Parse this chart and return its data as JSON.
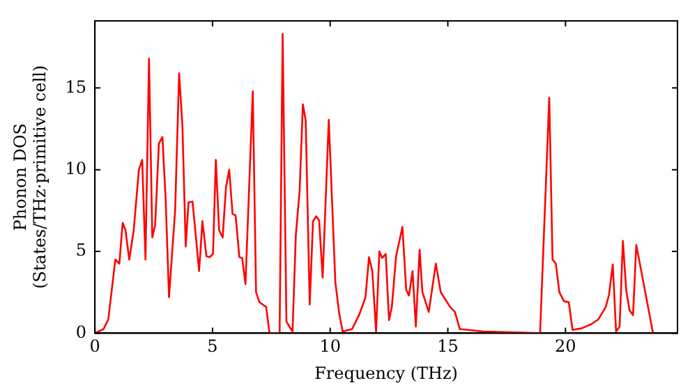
{
  "chart_data": {
    "type": "line",
    "xlabel": "Frequency (THz)",
    "ylabel": "Phonon DOS\n(States/THz·primitive cell)",
    "xlim": [
      0,
      24.76
    ],
    "ylim": [
      0,
      19.1
    ],
    "xticks": [
      0,
      5,
      10,
      15,
      20
    ],
    "yticks": [
      0,
      5,
      10,
      15
    ],
    "grid": false,
    "legend": false,
    "marker": "none",
    "line_style": "solid",
    "series": [
      {
        "color": "#ff0000",
        "x": [
          0,
          0.37,
          0.57,
          0.87,
          1.04,
          1.18,
          1.3,
          1.46,
          1.65,
          1.87,
          2.01,
          2.15,
          2.3,
          2.44,
          2.56,
          2.72,
          2.87,
          3.01,
          3.15,
          3.41,
          3.58,
          3.72,
          3.86,
          3.98,
          4.15,
          4.43,
          4.57,
          4.74,
          4.88,
          5.02,
          5.14,
          5.28,
          5.43,
          5.57,
          5.71,
          5.85,
          5.98,
          6.14,
          6.26,
          6.4,
          6.71,
          6.85,
          6.99,
          7.28,
          7.42,
          7.85,
          7.98,
          8.14,
          8.4,
          8.54,
          8.7,
          8.84,
          8.96,
          9.13,
          9.27,
          9.41,
          9.53,
          9.68,
          9.94,
          10.22,
          10.39,
          10.53,
          10.93,
          11.24,
          11.5,
          11.65,
          11.79,
          11.95,
          12.09,
          12.21,
          12.36,
          12.5,
          12.62,
          12.8,
          13.07,
          13.23,
          13.35,
          13.5,
          13.64,
          13.8,
          13.92,
          14.19,
          14.49,
          14.7,
          15.1,
          15.3,
          15.51,
          16.52,
          18.92,
          19.31,
          19.45,
          19.59,
          19.74,
          19.94,
          20.14,
          20.3,
          20.69,
          21.1,
          21.4,
          21.71,
          21.85,
          22.01,
          22.15,
          22.3,
          22.44,
          22.58,
          22.72,
          22.87,
          23.01,
          23.72
        ],
        "values": [
          0,
          0.25,
          0.85,
          4.5,
          4.25,
          6.75,
          6.3,
          4.5,
          6.3,
          10,
          10.6,
          4.5,
          16.8,
          5.85,
          6.6,
          11.6,
          12,
          8.1,
          2.2,
          7.5,
          15.9,
          12.7,
          5.3,
          8,
          8.05,
          3.8,
          6.85,
          4.7,
          4.65,
          4.85,
          10.6,
          6.3,
          5.85,
          8.9,
          10,
          7.3,
          7.2,
          4.65,
          4.6,
          3,
          14.8,
          2.5,
          1.9,
          1.6,
          0,
          0,
          18.3,
          0.7,
          0.1,
          6,
          8.7,
          14,
          13,
          1.75,
          6.85,
          7.15,
          6.9,
          3.4,
          13.05,
          3.1,
          1.15,
          0.1,
          0.25,
          1.15,
          2.2,
          4.65,
          3.8,
          0.1,
          5,
          4.6,
          4.85,
          0.8,
          1.6,
          4.7,
          6.5,
          2.65,
          2.3,
          3.8,
          0.4,
          5.1,
          2.5,
          1.3,
          4.25,
          2.5,
          1.6,
          1.3,
          0.25,
          0.1,
          0,
          14.4,
          4.5,
          4.25,
          2.5,
          1.95,
          1.9,
          0.2,
          0.3,
          0.55,
          0.85,
          1.6,
          2.35,
          4.2,
          0.1,
          0.4,
          5.65,
          2.65,
          1.4,
          1.1,
          5.4,
          0
        ]
      }
    ]
  }
}
